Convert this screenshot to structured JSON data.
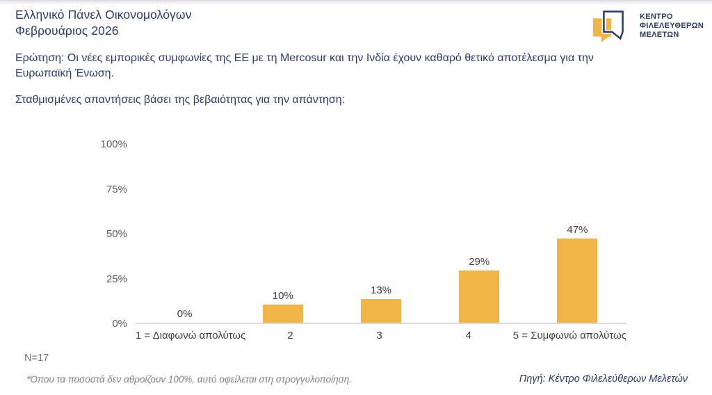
{
  "header": {
    "title_line1": "Ελληνικό Πάνελ Οικονομολόγων",
    "title_line2": "Φεβρουάριος 2026",
    "logo": {
      "line1": "ΚΕΝΤΡΟ",
      "line2": "ΦΙΛΕΛΕΥΘΕΡΩΝ",
      "line3": "ΜΕΛΕΤΩΝ"
    }
  },
  "question": "Ερώτηση: Οι νέες εμπορικές συμφωνίες της ΕΕ με τη Mercosur και την Ινδία έχουν καθαρό θετικό αποτέλεσμα για την Ευρωπαϊκή Ένωση.",
  "subtitle": "Σταθμισμένες απαντήσεις βάσει της βεβαιότητας για την απάντηση:",
  "chart_data": {
    "type": "bar",
    "title": "",
    "xlabel": "",
    "ylabel": "",
    "categories": [
      "1 = Διαφωνώ απολύτως",
      "2",
      "3",
      "4",
      "5 = Συμφωνώ απολύτως"
    ],
    "values": [
      0,
      10,
      13,
      29,
      47
    ],
    "value_labels": [
      "0%",
      "10%",
      "13%",
      "29%",
      "47%"
    ],
    "y_ticks": [
      "0%",
      "25%",
      "50%",
      "75%",
      "100%"
    ],
    "y_tick_values": [
      0,
      25,
      50,
      75,
      100
    ],
    "ylim": [
      0,
      100
    ],
    "grid": false,
    "legend": false,
    "bar_color": "#F0B546"
  },
  "footer": {
    "n_label": "N=17",
    "footnote": "*Όπου τα ποσοστά δεν αθροίζουν 100%, αυτό οφείλεται στη στρογγυλοποίηση.",
    "source": "Πηγή: Κέντρο Φιλελεύθερων Μελετών"
  },
  "colors": {
    "navy": "#2c3a67",
    "bar": "#F0B546",
    "axis_line": "#d9d9d9",
    "tick_gray": "#595959",
    "label_gray": "#3f3f3f"
  }
}
